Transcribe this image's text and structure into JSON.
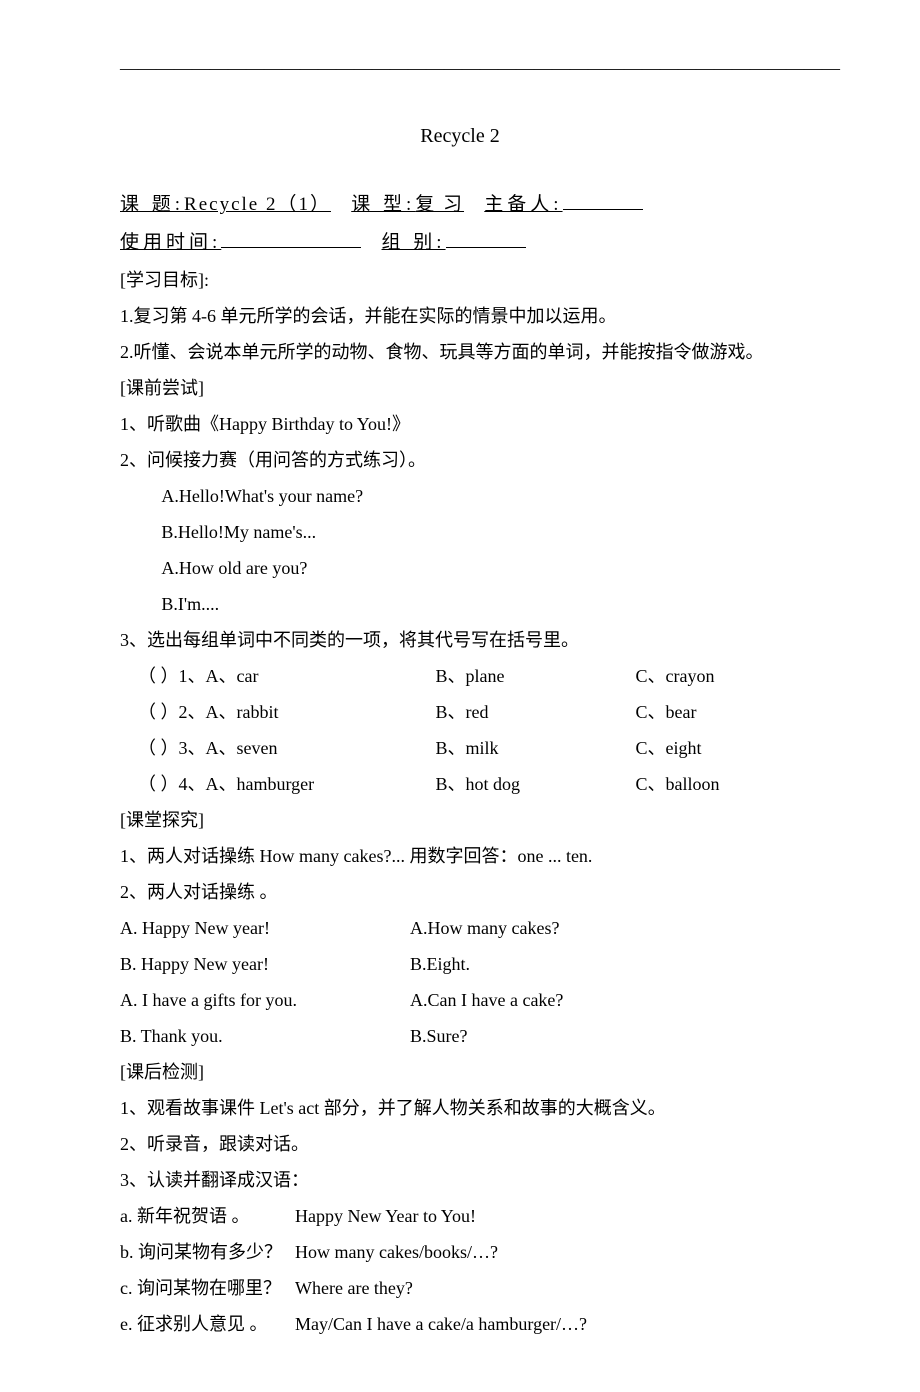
{
  "rule": "————————————————————————————————————————",
  "title": "Recycle 2",
  "header": {
    "topic_label": "课    题:",
    "topic_value": "Recycle 2（1）",
    "type_label": "课   型:",
    "type_value": "复   习",
    "preparer_label": "主备人:",
    "time_label": "使用时间:",
    "group_label": "组   别:"
  },
  "goals": {
    "heading": "[学习目标]:",
    "items": [
      "1.复习第 4-6 单元所学的会话，并能在实际的情景中加以运用。",
      "2.听懂、会说本单元所学的动物、食物、玩具等方面的单词，并能按指令做游戏。"
    ]
  },
  "pre": {
    "heading": "[课前尝试]",
    "item1": "1、听歌曲《Happy   Birthday   to   You!》",
    "item2": "2、问候接力赛（用问答的方式练习）。",
    "dialog": [
      "A.Hello!What's   your   name?",
      "B.Hello!My name's...",
      "A.How old   are   you?",
      "B.I'm...."
    ],
    "item3": "3、选出每组单词中不同类的一项，将其代号写在括号里。",
    "questions": [
      {
        "n": "1",
        "a": "A、car",
        "b": "B、plane",
        "c": "C、crayon"
      },
      {
        "n": "2",
        "a": "A、rabbit",
        "b": "B、red",
        "c": "C、bear"
      },
      {
        "n": "3",
        "a": "A、seven",
        "b": "B、milk",
        "c": "C、eight"
      },
      {
        "n": "4",
        "a": "A、hamburger",
        "b": "B、hot dog",
        "c": "C、balloon"
      }
    ]
  },
  "inclass": {
    "heading": "[课堂探究]",
    "item1": "1、两人对话操练 How   many   cakes?... 用数字回答：one ... ten.",
    "item2": "2、两人对话操练 。",
    "pairs": [
      {
        "l": "A. Happy New year!",
        "r": "A.How many cakes?"
      },
      {
        "l": "B. Happy New year!",
        "r": "B.Eight."
      },
      {
        "l": "A. I have a gifts for   you.",
        "r": "A.Can I have a cake?"
      },
      {
        "l": "B. Thank you.",
        "r": "B.Sure?"
      }
    ]
  },
  "post": {
    "heading": "[课后检测]",
    "items": [
      "1、观看故事课件 Let's act  部分，并了解人物关系和故事的大概含义。",
      "2、听录音，跟读对话。",
      "3、认读并翻译成汉语："
    ],
    "trans": [
      {
        "k": "a.  新年祝贺语 。",
        "v": "Happy New Year to You!"
      },
      {
        "k": "b.  询问某物有多少？",
        "v": "How many cakes/books/…?"
      },
      {
        "k": "c.  询问某物在哪里？",
        "v": "Where are they?"
      },
      {
        "k": "e.  征求别人意见 。",
        "v": "May/Can I have a cake/a hamburger/…?"
      }
    ]
  }
}
